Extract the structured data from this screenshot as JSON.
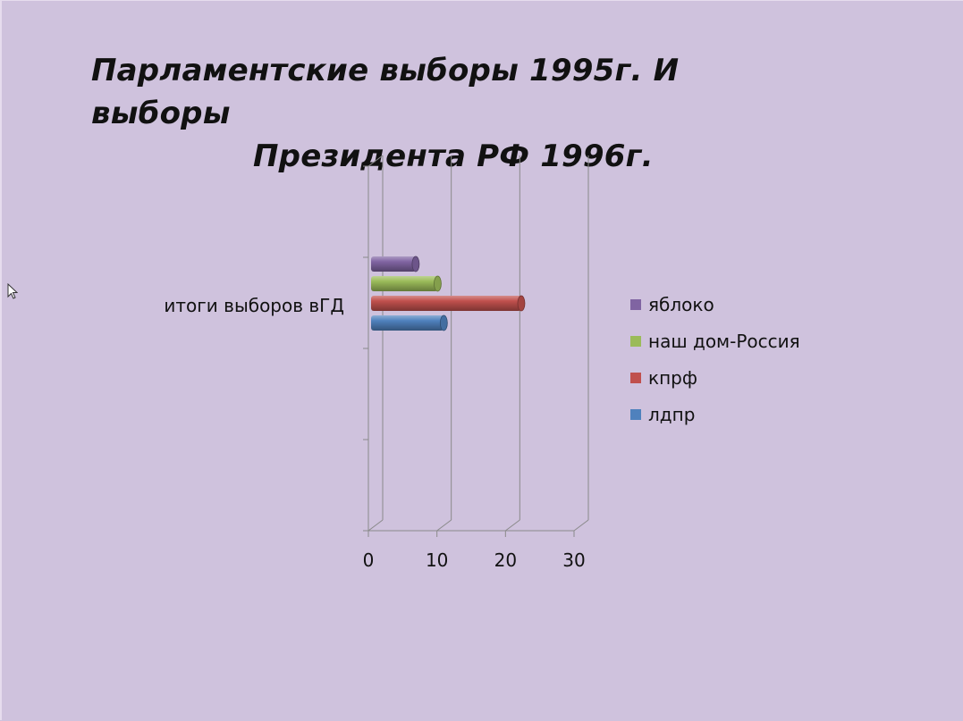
{
  "slide": {
    "title_line1": "Парламентские выборы 1995г. И выборы",
    "title_line2": "Президента РФ 1996г."
  },
  "chart_data": {
    "type": "bar",
    "orientation": "horizontal",
    "style": "3d-cylinder",
    "categories": [
      "итоги выборов вГД"
    ],
    "series": [
      {
        "name": "ЛДПР",
        "legend": "лдпр",
        "values": [
          11
        ],
        "color": "#4f81bd"
      },
      {
        "name": "КПРФ",
        "legend": "кпрф",
        "values": [
          22.3
        ],
        "color": "#c0504d"
      },
      {
        "name": "Наш дом-Россия",
        "legend": "наш дом-Россия",
        "values": [
          10.1
        ],
        "color": "#9bbb59"
      },
      {
        "name": "Яблоко",
        "legend": "яблоко",
        "values": [
          6.9
        ],
        "color": "#8064a2"
      }
    ],
    "legend_order": [
      "яблоко",
      "наш дом-Россия",
      "кпрф",
      "лдпр"
    ],
    "xlim": [
      0,
      30
    ],
    "xticks": [
      "0",
      "10",
      "20",
      "30"
    ],
    "grid": true,
    "legend_position": "right"
  }
}
